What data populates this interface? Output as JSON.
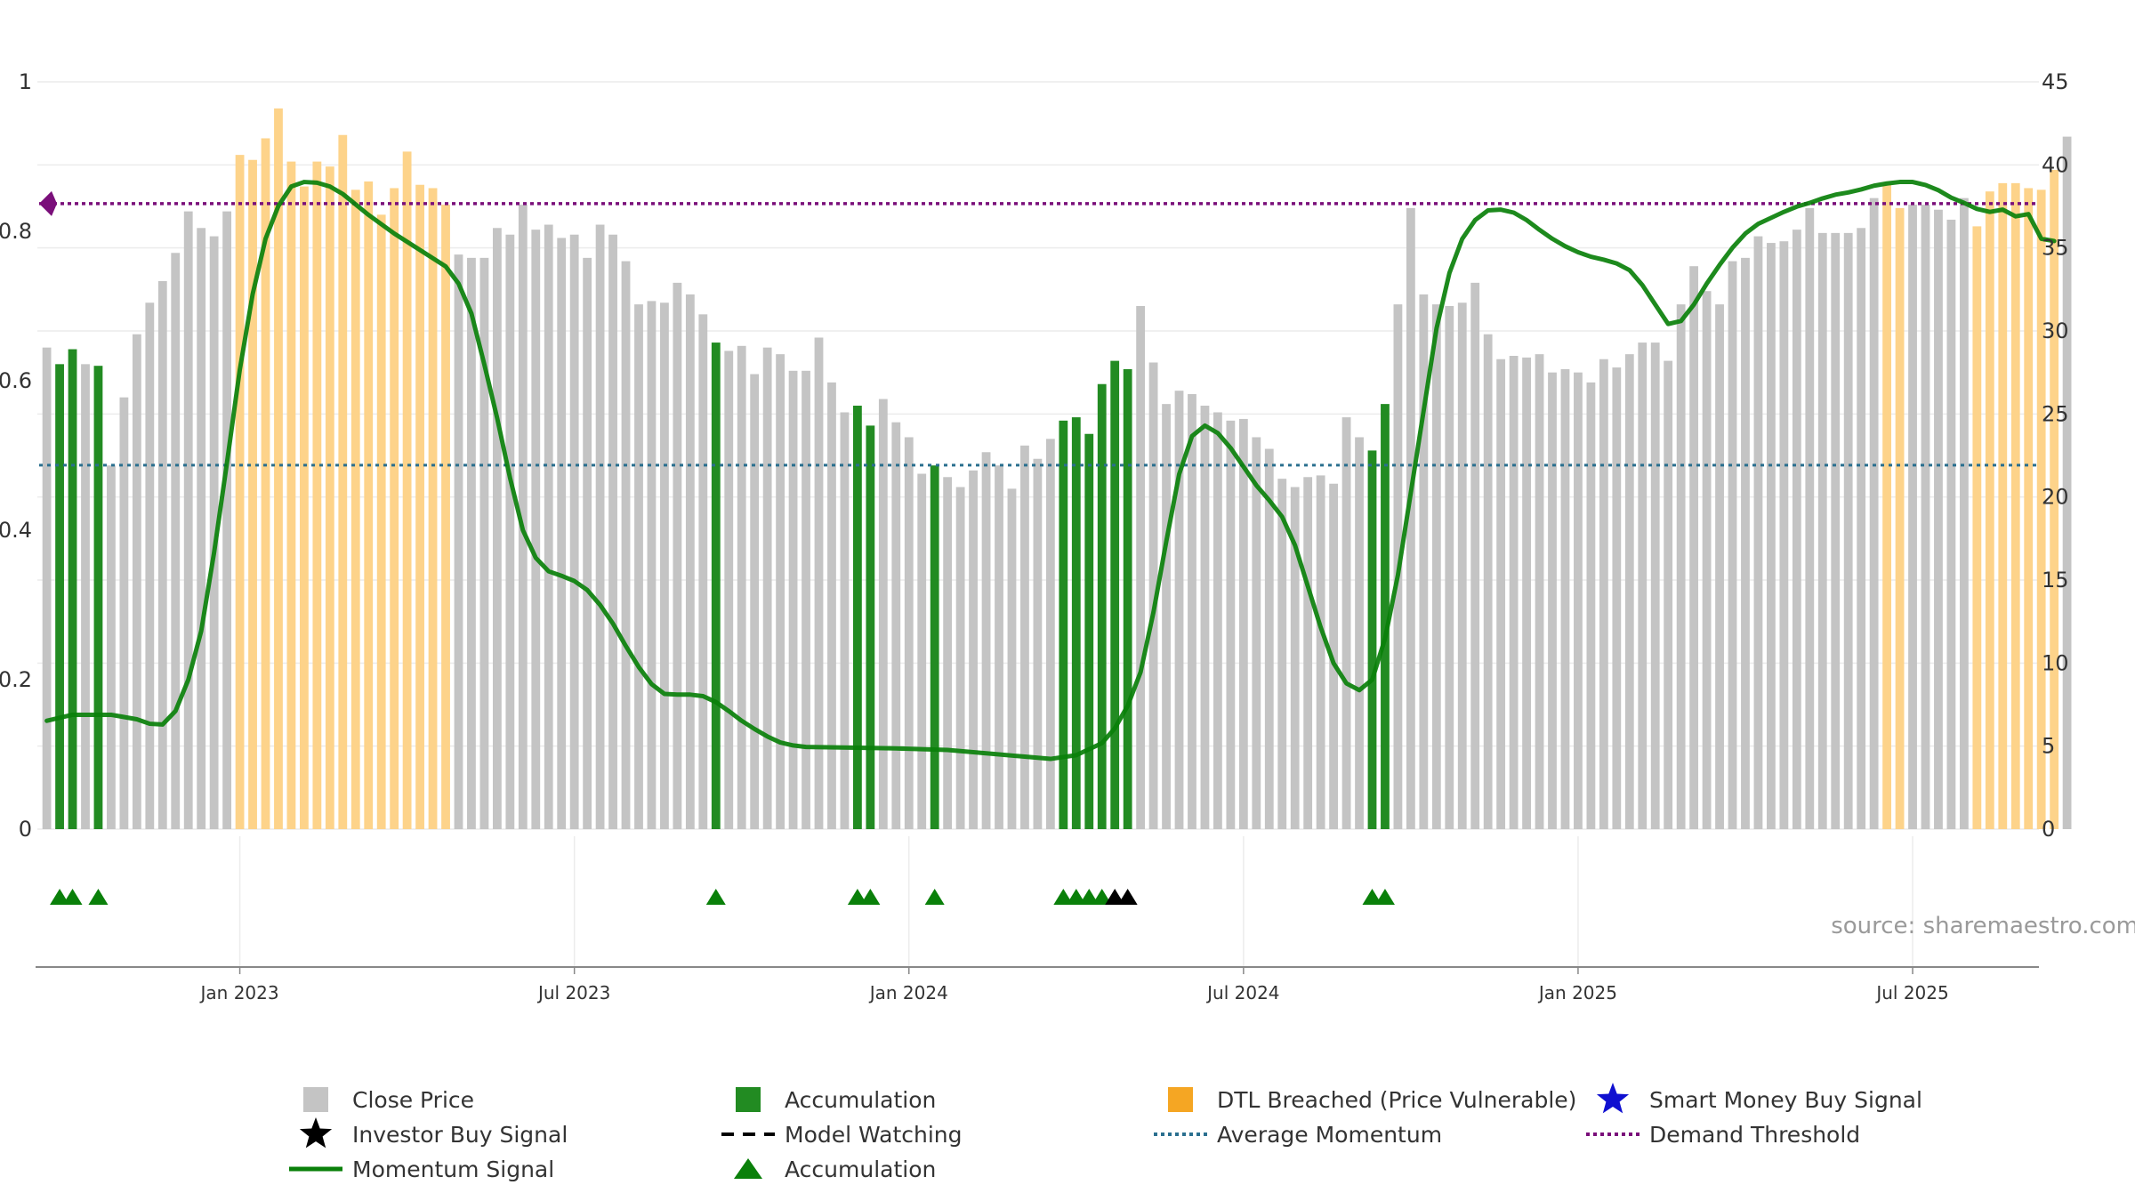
{
  "source_text": "source: sharemaestro.com",
  "colors": {
    "close_price": "#c4c4c4",
    "accumulation": "#228B22",
    "dtl_breached": "#fdd38a",
    "momentum": "#0a800a",
    "average_momentum": "#2a6f8f",
    "demand_threshold": "#7a0f7a",
    "investor_signal": "#000000",
    "smart_money_signal": "#1010d0",
    "accum_marker": "#0a800a"
  },
  "legend": [
    {
      "label": "Close Price",
      "symbol": "square",
      "color": "#c4c4c4"
    },
    {
      "label": "Accumulation",
      "symbol": "square",
      "color": "#228B22"
    },
    {
      "label": "DTL Breached (Price Vulnerable)",
      "symbol": "square",
      "color": "#f5a623"
    },
    {
      "label": "Smart Money Buy Signal",
      "symbol": "star",
      "color": "#1010d0"
    },
    {
      "label": "Investor Buy Signal",
      "symbol": "star",
      "color": "#000000"
    },
    {
      "label": "Model Watching",
      "symbol": "dash",
      "color": "#000000"
    },
    {
      "label": "Average Momentum",
      "symbol": "dot",
      "color": "#2a6f8f"
    },
    {
      "label": "Demand Threshold",
      "symbol": "dot",
      "color": "#7a0f7a"
    },
    {
      "label": "Momentum Signal",
      "symbol": "line",
      "color": "#0a800a"
    },
    {
      "label": "Accumulation",
      "symbol": "triangle",
      "color": "#0a800a"
    }
  ],
  "chart_data": {
    "type": "bar",
    "title": "",
    "xlabel": "",
    "ylabel": "",
    "y_left_ticks": [
      "0",
      "0.2",
      "0.4",
      "0.6",
      "0.8",
      "1"
    ],
    "y_right_ticks": [
      "0",
      "5",
      "10",
      "15",
      "20",
      "25",
      "30",
      "35",
      "40",
      "45"
    ],
    "ylim_left": [
      0,
      1
    ],
    "ylim_right": [
      0,
      45
    ],
    "x_ticks": [
      {
        "label": "Jan 2023",
        "index": 15
      },
      {
        "label": "Jul 2023",
        "index": 41
      },
      {
        "label": "Jan 2024",
        "index": 67
      },
      {
        "label": "Jul 2024",
        "index": 93
      },
      {
        "label": "Jan 2025",
        "index": 119
      },
      {
        "label": "Jul 2025",
        "index": 145
      }
    ],
    "grid": true,
    "legend_position": "bottom",
    "bars_close_price": [
      29,
      28,
      28.9,
      28,
      27.9,
      21.9,
      26,
      29.8,
      31.7,
      33,
      34.7,
      37.2,
      36.2,
      35.7,
      37.2,
      40.6,
      40.3,
      41.6,
      43.4,
      40.2,
      38.7,
      40.2,
      39.9,
      41.8,
      38.5,
      39,
      37,
      38.6,
      40.8,
      38.8,
      38.6,
      37.6,
      34.6,
      34.4,
      34.4,
      36.2,
      35.8,
      37.6,
      36.1,
      36.4,
      35.6,
      35.8,
      34.4,
      36.4,
      35.8,
      34.2,
      31.6,
      31.8,
      31.7,
      32.9,
      32.2,
      31,
      29.3,
      28.8,
      29.1,
      27.4,
      29,
      28.6,
      27.6,
      27.6,
      29.6,
      26.9,
      25.1,
      25.5,
      24.3,
      25.9,
      24.5,
      23.6,
      21.4,
      21.9,
      21.2,
      20.6,
      21.6,
      22.7,
      21.9,
      20.5,
      23.1,
      22.3,
      23.5,
      24.6,
      24.8,
      23.8,
      26.8,
      28.2,
      27.7,
      31.5,
      28.1,
      25.6,
      26.4,
      26.2,
      25.5,
      25.1,
      24.6,
      24.7,
      23.6,
      22.9,
      21.1,
      20.6,
      21.2,
      21.3,
      20.8,
      24.8,
      23.6,
      22.8,
      25.6,
      31.6,
      37.4,
      32.2,
      31.6,
      31.5,
      31.7,
      32.9,
      29.8,
      28.3,
      28.5,
      28.4,
      28.6,
      27.5,
      27.7,
      27.5,
      26.9,
      28.3,
      27.8,
      28.6,
      29.3,
      29.3,
      28.2,
      31.6,
      33.9,
      32.4,
      31.6,
      34.2,
      34.4,
      35.7,
      35.3,
      35.4,
      36.1,
      37.4,
      35.9,
      35.9,
      35.9,
      36.2,
      38,
      38.8,
      37.4,
      37.6,
      37.6,
      37.3,
      36.7,
      38,
      36.3,
      38.4,
      38.9,
      38.9,
      38.6,
      38.5,
      39.7,
      41.7
    ],
    "accumulation_indices": [
      1,
      2,
      4,
      52,
      63,
      64,
      69,
      79,
      80,
      81,
      82,
      83,
      84,
      103,
      104
    ],
    "dtl_breached_indices": [
      15,
      16,
      17,
      18,
      19,
      20,
      21,
      22,
      23,
      24,
      25,
      26,
      27,
      28,
      29,
      30,
      31,
      143,
      144,
      150,
      151,
      152,
      153,
      154,
      155,
      156
    ],
    "series": [
      {
        "name": "Momentum Signal",
        "axis": "left",
        "points": [
          [
            0,
            0.145
          ],
          [
            2,
            0.153
          ],
          [
            5,
            0.153
          ],
          [
            7,
            0.147
          ],
          [
            8,
            0.141
          ],
          [
            9,
            0.14
          ],
          [
            10,
            0.158
          ],
          [
            11,
            0.2
          ],
          [
            12,
            0.265
          ],
          [
            13,
            0.37
          ],
          [
            14,
            0.49
          ],
          [
            15,
            0.615
          ],
          [
            16,
            0.716
          ],
          [
            17,
            0.79
          ],
          [
            18,
            0.834
          ],
          [
            19,
            0.86
          ],
          [
            20,
            0.866
          ],
          [
            21,
            0.865
          ],
          [
            22,
            0.86
          ],
          [
            23,
            0.85
          ],
          [
            25,
            0.822
          ],
          [
            27,
            0.797
          ],
          [
            29,
            0.775
          ],
          [
            31,
            0.753
          ],
          [
            32,
            0.73
          ],
          [
            33,
            0.69
          ],
          [
            34,
            0.622
          ],
          [
            35,
            0.55
          ],
          [
            36,
            0.47
          ],
          [
            37,
            0.4
          ],
          [
            38,
            0.363
          ],
          [
            39,
            0.345
          ],
          [
            40,
            0.339
          ],
          [
            41,
            0.332
          ],
          [
            42,
            0.32
          ],
          [
            43,
            0.3
          ],
          [
            44,
            0.275
          ],
          [
            45,
            0.245
          ],
          [
            46,
            0.217
          ],
          [
            47,
            0.194
          ],
          [
            48,
            0.181
          ],
          [
            49,
            0.18
          ],
          [
            50,
            0.18
          ],
          [
            51,
            0.178
          ],
          [
            52,
            0.17
          ],
          [
            53,
            0.158
          ],
          [
            54,
            0.145
          ],
          [
            55,
            0.134
          ],
          [
            56,
            0.124
          ],
          [
            57,
            0.116
          ],
          [
            58,
            0.112
          ],
          [
            59,
            0.11
          ],
          [
            63,
            0.109
          ],
          [
            66,
            0.108
          ],
          [
            70,
            0.106
          ],
          [
            72,
            0.103
          ],
          [
            74,
            0.1
          ],
          [
            76,
            0.097
          ],
          [
            78,
            0.094
          ],
          [
            80,
            0.099
          ],
          [
            82,
            0.115
          ],
          [
            83,
            0.135
          ],
          [
            84,
            0.165
          ],
          [
            85,
            0.21
          ],
          [
            86,
            0.29
          ],
          [
            87,
            0.385
          ],
          [
            88,
            0.475
          ],
          [
            89,
            0.526
          ],
          [
            90,
            0.54
          ],
          [
            91,
            0.53
          ],
          [
            92,
            0.51
          ],
          [
            93,
            0.485
          ],
          [
            94,
            0.46
          ],
          [
            95,
            0.44
          ],
          [
            96,
            0.418
          ],
          [
            97,
            0.38
          ],
          [
            98,
            0.325
          ],
          [
            99,
            0.27
          ],
          [
            100,
            0.222
          ],
          [
            101,
            0.195
          ],
          [
            102,
            0.186
          ],
          [
            103,
            0.2
          ],
          [
            104,
            0.255
          ],
          [
            105,
            0.34
          ],
          [
            106,
            0.45
          ],
          [
            107,
            0.56
          ],
          [
            108,
            0.67
          ],
          [
            109,
            0.744
          ],
          [
            110,
            0.79
          ],
          [
            111,
            0.815
          ],
          [
            112,
            0.828
          ],
          [
            113,
            0.829
          ],
          [
            114,
            0.825
          ],
          [
            115,
            0.815
          ],
          [
            116,
            0.802
          ],
          [
            117,
            0.79
          ],
          [
            118,
            0.78
          ],
          [
            119,
            0.772
          ],
          [
            120,
            0.766
          ],
          [
            121,
            0.762
          ],
          [
            122,
            0.757
          ],
          [
            123,
            0.748
          ],
          [
            124,
            0.728
          ],
          [
            125,
            0.702
          ],
          [
            126,
            0.676
          ],
          [
            127,
            0.68
          ],
          [
            128,
            0.702
          ],
          [
            129,
            0.73
          ],
          [
            130,
            0.755
          ],
          [
            131,
            0.778
          ],
          [
            132,
            0.797
          ],
          [
            133,
            0.81
          ],
          [
            134,
            0.818
          ],
          [
            135,
            0.826
          ],
          [
            136,
            0.833
          ],
          [
            137,
            0.838
          ],
          [
            138,
            0.844
          ],
          [
            139,
            0.849
          ],
          [
            140,
            0.852
          ],
          [
            141,
            0.856
          ],
          [
            142,
            0.861
          ],
          [
            143,
            0.864
          ],
          [
            144,
            0.866
          ],
          [
            145,
            0.866
          ],
          [
            146,
            0.862
          ],
          [
            147,
            0.855
          ],
          [
            148,
            0.845
          ],
          [
            149,
            0.838
          ],
          [
            150,
            0.83
          ],
          [
            151,
            0.826
          ],
          [
            152,
            0.829
          ],
          [
            153,
            0.82
          ],
          [
            154,
            0.823
          ],
          [
            155,
            0.79
          ],
          [
            156,
            0.787
          ]
        ]
      },
      {
        "name": "Average Momentum",
        "axis": "left",
        "value": 0.487
      },
      {
        "name": "Demand Threshold",
        "axis": "left",
        "value": 0.837
      }
    ],
    "accumulation_markers": [
      1,
      2,
      4,
      52,
      63,
      64,
      69,
      79,
      80,
      81,
      82,
      103,
      104
    ],
    "investor_buy_markers": [
      83,
      84
    ]
  }
}
